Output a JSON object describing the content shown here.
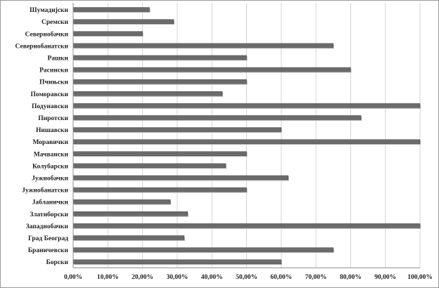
{
  "chart_data": {
    "type": "bar",
    "orientation": "horizontal",
    "categories": [
      "Шумадијски",
      "Сремски",
      "Севернобачки",
      "Севернобанатски",
      "Рашки",
      "Расински",
      "Пчињски",
      "Поморавски",
      "Подунавски",
      "Пиротски",
      "Нишавски",
      "Моравички",
      "Мачвански",
      "Колубарски",
      "Јужнобачки",
      "Јужнобанатски",
      "Јабланички",
      "Златиборски",
      "Западнобачки",
      "Град Београд",
      "Браничевски",
      "Борски"
    ],
    "values": [
      22,
      29,
      20,
      75,
      50,
      80,
      50,
      43,
      100,
      83,
      60,
      100,
      50,
      44,
      62,
      50,
      28,
      33,
      100,
      32,
      75,
      60
    ],
    "xlim": [
      0,
      100
    ],
    "xticks": [
      "0,00%",
      "10,00%",
      "20,00%",
      "30,00%",
      "40,00%",
      "50,00%",
      "60,00%",
      "70,00%",
      "80,00%",
      "90,00%",
      "100,00%"
    ],
    "grid": true,
    "legend": "none",
    "title": "",
    "xlabel": "",
    "ylabel": "",
    "bar_color": "#6b6b6b"
  }
}
